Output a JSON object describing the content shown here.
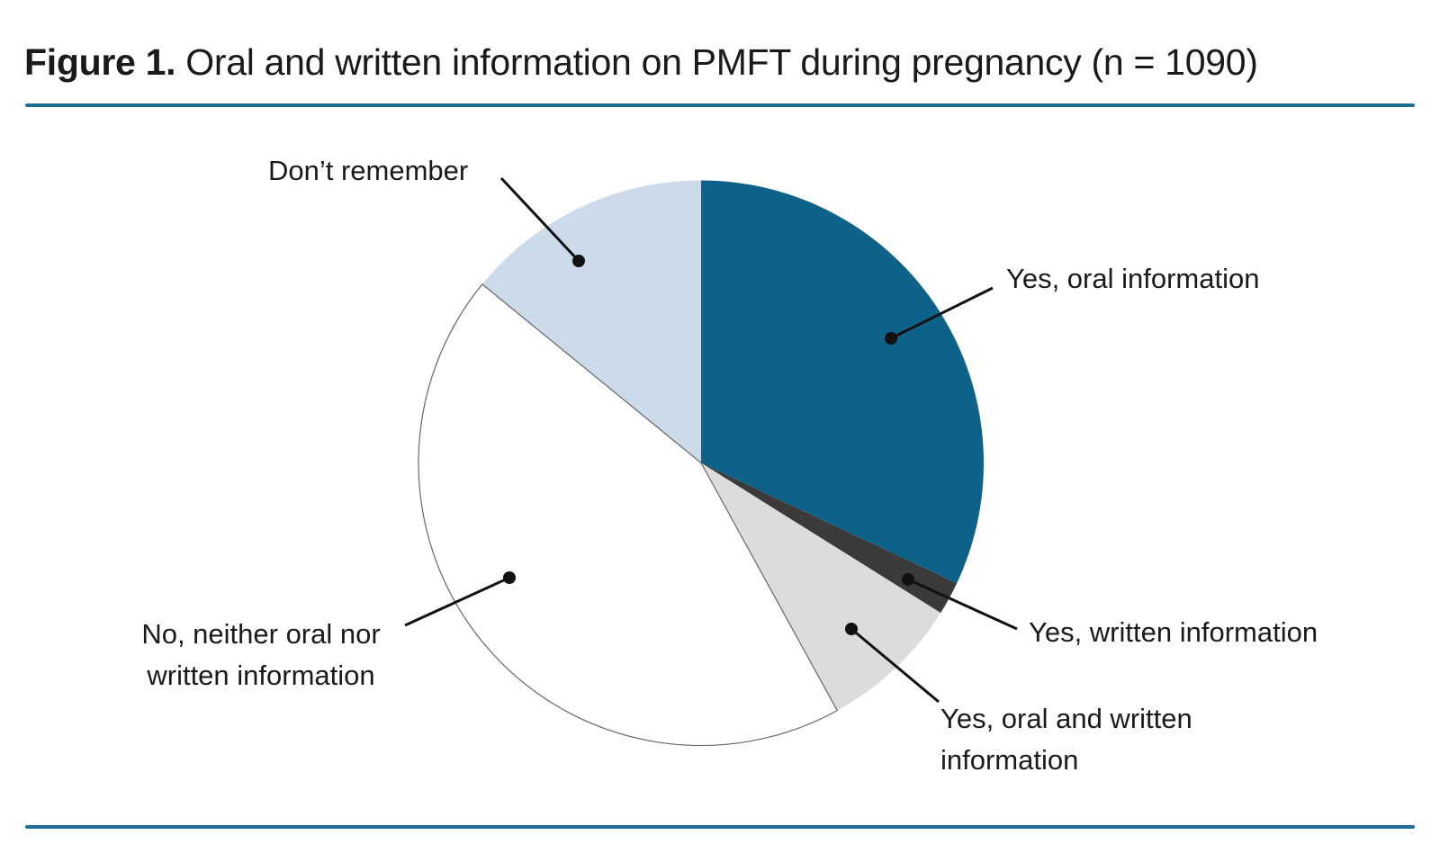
{
  "figure": {
    "title_bold": "Figure 1.",
    "title_rest": " Oral and written information on PMFT during pregnancy (n = 1090)"
  },
  "colors": {
    "accent_rule": "#1d6e99",
    "leader_line": "#111111",
    "text": "#1a1a1a",
    "outline": "#666666"
  },
  "chart_data": {
    "type": "pie",
    "title": "Oral and written information on PMFT during pregnancy",
    "sample_size_label": "n = 1090",
    "start_angle_deg": 0,
    "direction": "clockwise",
    "value_unit": "percent (estimated from segment angles, no numeric labels shown)",
    "legend_position": "callout-labels",
    "slices": [
      {
        "id": "yes-oral",
        "label": "Yes, oral information",
        "value": 32.0,
        "color": "#0e6189",
        "outlined": false
      },
      {
        "id": "yes-written",
        "label": "Yes, written information",
        "value": 1.9,
        "color": "#3a3a3a",
        "outlined": false
      },
      {
        "id": "yes-oral-and-written",
        "label": "Yes, oral and written information",
        "value": 8.1,
        "color": "#dcdcdc",
        "outlined": false
      },
      {
        "id": "no-neither",
        "label": "No, neither oral nor written information",
        "value": 43.9,
        "color": "#ffffff",
        "outlined": true
      },
      {
        "id": "dont-remember",
        "label": "Don’t remember",
        "value": 14.1,
        "color": "#ccdbe9",
        "outlined": false
      }
    ]
  },
  "labels": {
    "dont_remember": "Don’t remember",
    "oral": "Yes, oral information",
    "written": "Yes, written information",
    "oral_written_line1": "Yes, oral and written",
    "oral_written_line2": "information",
    "none_line1": "No, neither oral nor",
    "none_line2": "written information"
  }
}
